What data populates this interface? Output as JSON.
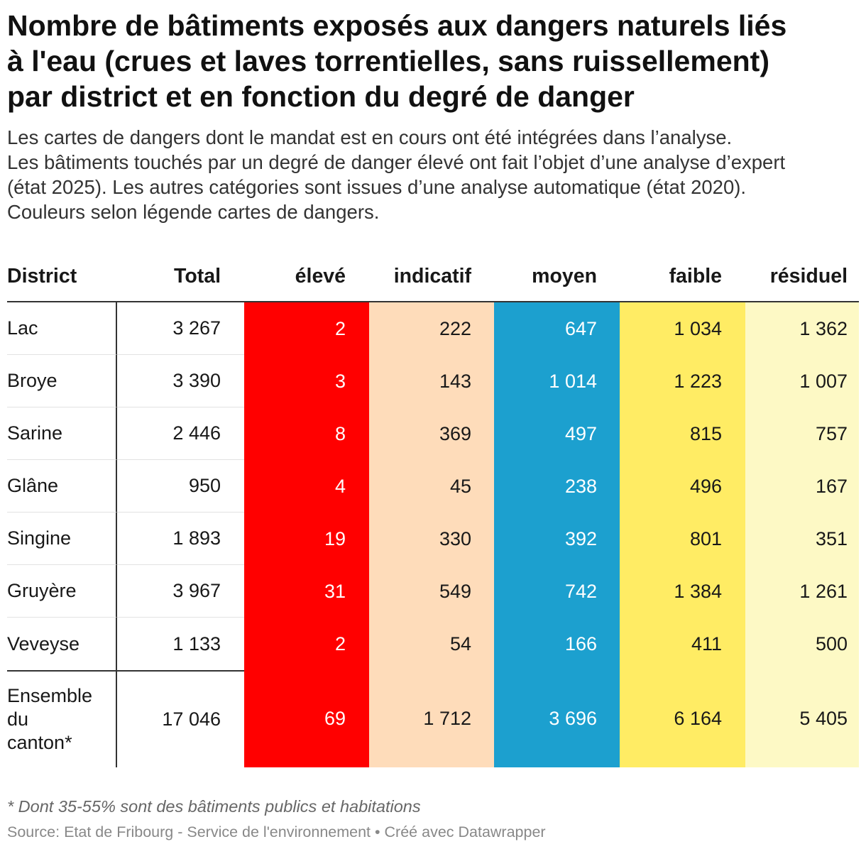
{
  "chart_data": {
    "type": "table",
    "title": "Nombre de bâtiments exposés aux dangers naturels liés à l'eau (crues et laves torrentielles, sans ruissellement) par district et en fonction du degré de danger",
    "description": [
      "Les cartes de dangers dont le mandat est en cours ont été intégrées dans l’analyse.",
      "Les bâtiments touchés par un degré de danger élevé ont fait l’objet d’une analyse d’expert (état 2025). Les autres catégories sont issues d’une analyse automatique (état 2020).",
      "Couleurs selon légende cartes de dangers."
    ],
    "columns": [
      {
        "label": "District"
      },
      {
        "label": "Total"
      },
      {
        "label": "élevé",
        "color": "#ff0000",
        "text_color": "#ffffff"
      },
      {
        "label": "indicatif",
        "color": "#fedcba"
      },
      {
        "label": "moyen",
        "color": "#1ca0cf",
        "text_color": "#ffffff"
      },
      {
        "label": "faible",
        "color": "#ffec64"
      },
      {
        "label": "résiduel",
        "color": "#fdf9c5"
      }
    ],
    "rows": [
      {
        "district": "Lac",
        "values": [
          3267,
          2,
          222,
          647,
          1034,
          1362
        ]
      },
      {
        "district": "Broye",
        "values": [
          3390,
          3,
          143,
          1014,
          1223,
          1007
        ]
      },
      {
        "district": "Sarine",
        "values": [
          2446,
          8,
          369,
          497,
          815,
          757
        ]
      },
      {
        "district": "Glâne",
        "values": [
          950,
          4,
          45,
          238,
          496,
          167
        ]
      },
      {
        "district": "Singine",
        "values": [
          1893,
          19,
          330,
          392,
          801,
          351
        ]
      },
      {
        "district": "Gruyère",
        "values": [
          3967,
          31,
          549,
          742,
          1384,
          1261
        ]
      },
      {
        "district": "Veveyse",
        "values": [
          1133,
          2,
          54,
          166,
          411,
          500
        ]
      }
    ],
    "total_row": {
      "district": "Ensemble du canton*",
      "values": [
        17046,
        69,
        1712,
        3696,
        6164,
        5405
      ]
    }
  },
  "footer": {
    "note": "* Dont 35-55% sont des bâtiments publics et habitations",
    "source_label": "Source:",
    "source_name": "Etat de Fribourg - Service de l'environnement",
    "separator": "•",
    "credit": "Créé avec Datawrapper"
  }
}
